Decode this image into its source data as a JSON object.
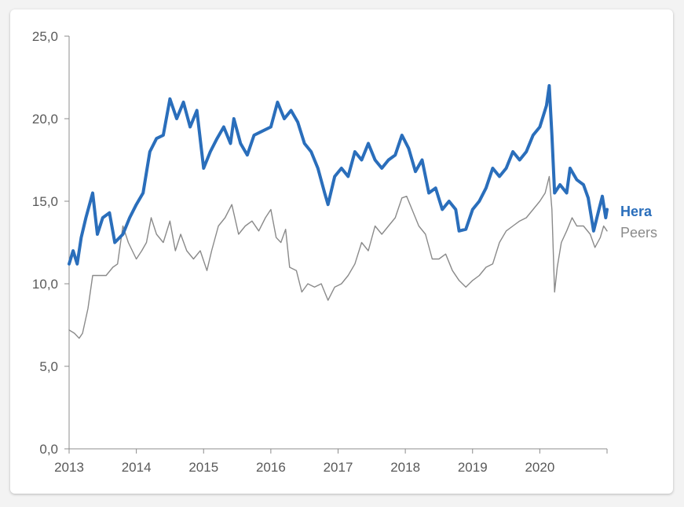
{
  "chart_data": {
    "type": "line",
    "title": "",
    "xlabel": "",
    "ylabel": "",
    "x_ticks": [
      "2013",
      "2014",
      "2015",
      "2016",
      "2017",
      "2018",
      "2019",
      "2020"
    ],
    "x_range": [
      2013.0,
      2021.0
    ],
    "y_ticks": [
      "0,0",
      "5,0",
      "10,0",
      "15,0",
      "20,0",
      "25,0"
    ],
    "y_range": [
      0,
      25
    ],
    "grid": false,
    "legend_placement": "right",
    "series": [
      {
        "name": "Hera",
        "color": "#2a6ebb",
        "bold": true,
        "points": [
          [
            2013.0,
            11.2
          ],
          [
            2013.06,
            12.0
          ],
          [
            2013.12,
            11.2
          ],
          [
            2013.18,
            12.8
          ],
          [
            2013.25,
            14.0
          ],
          [
            2013.35,
            15.5
          ],
          [
            2013.42,
            13.0
          ],
          [
            2013.5,
            14.0
          ],
          [
            2013.6,
            14.3
          ],
          [
            2013.68,
            12.5
          ],
          [
            2013.8,
            13.0
          ],
          [
            2013.9,
            14.0
          ],
          [
            2014.0,
            14.8
          ],
          [
            2014.1,
            15.5
          ],
          [
            2014.2,
            18.0
          ],
          [
            2014.3,
            18.8
          ],
          [
            2014.4,
            19.0
          ],
          [
            2014.5,
            21.2
          ],
          [
            2014.6,
            20.0
          ],
          [
            2014.7,
            21.0
          ],
          [
            2014.8,
            19.5
          ],
          [
            2014.9,
            20.5
          ],
          [
            2015.0,
            17.0
          ],
          [
            2015.1,
            18.0
          ],
          [
            2015.2,
            18.8
          ],
          [
            2015.3,
            19.5
          ],
          [
            2015.4,
            18.5
          ],
          [
            2015.45,
            20.0
          ],
          [
            2015.55,
            18.5
          ],
          [
            2015.65,
            17.8
          ],
          [
            2015.75,
            19.0
          ],
          [
            2015.85,
            19.2
          ],
          [
            2016.0,
            19.5
          ],
          [
            2016.1,
            21.0
          ],
          [
            2016.2,
            20.0
          ],
          [
            2016.3,
            20.5
          ],
          [
            2016.4,
            19.8
          ],
          [
            2016.5,
            18.5
          ],
          [
            2016.6,
            18.0
          ],
          [
            2016.7,
            17.0
          ],
          [
            2016.8,
            15.5
          ],
          [
            2016.85,
            14.8
          ],
          [
            2016.95,
            16.5
          ],
          [
            2017.05,
            17.0
          ],
          [
            2017.15,
            16.5
          ],
          [
            2017.25,
            18.0
          ],
          [
            2017.35,
            17.5
          ],
          [
            2017.45,
            18.5
          ],
          [
            2017.55,
            17.5
          ],
          [
            2017.65,
            17.0
          ],
          [
            2017.75,
            17.5
          ],
          [
            2017.85,
            17.8
          ],
          [
            2017.95,
            19.0
          ],
          [
            2018.05,
            18.2
          ],
          [
            2018.15,
            16.8
          ],
          [
            2018.25,
            17.5
          ],
          [
            2018.35,
            15.5
          ],
          [
            2018.45,
            15.8
          ],
          [
            2018.55,
            14.5
          ],
          [
            2018.65,
            15.0
          ],
          [
            2018.75,
            14.5
          ],
          [
            2018.8,
            13.2
          ],
          [
            2018.9,
            13.3
          ],
          [
            2019.0,
            14.5
          ],
          [
            2019.1,
            15.0
          ],
          [
            2019.2,
            15.8
          ],
          [
            2019.3,
            17.0
          ],
          [
            2019.4,
            16.5
          ],
          [
            2019.5,
            17.0
          ],
          [
            2019.6,
            18.0
          ],
          [
            2019.7,
            17.5
          ],
          [
            2019.8,
            18.0
          ],
          [
            2019.9,
            19.0
          ],
          [
            2020.0,
            19.5
          ],
          [
            2020.1,
            20.8
          ],
          [
            2020.14,
            22.0
          ],
          [
            2020.18,
            19.0
          ],
          [
            2020.22,
            15.5
          ],
          [
            2020.3,
            16.0
          ],
          [
            2020.4,
            15.5
          ],
          [
            2020.45,
            17.0
          ],
          [
            2020.55,
            16.3
          ],
          [
            2020.65,
            16.0
          ],
          [
            2020.72,
            15.2
          ],
          [
            2020.8,
            13.2
          ],
          [
            2020.88,
            14.5
          ],
          [
            2020.93,
            15.3
          ],
          [
            2020.98,
            14.0
          ],
          [
            2021.0,
            14.5
          ]
        ]
      },
      {
        "name": "Peers",
        "color": "#8a8a8a",
        "bold": false,
        "points": [
          [
            2013.0,
            7.2
          ],
          [
            2013.08,
            7.0
          ],
          [
            2013.15,
            6.7
          ],
          [
            2013.2,
            7.0
          ],
          [
            2013.28,
            8.5
          ],
          [
            2013.35,
            10.5
          ],
          [
            2013.45,
            10.5
          ],
          [
            2013.55,
            10.5
          ],
          [
            2013.65,
            11.0
          ],
          [
            2013.72,
            11.2
          ],
          [
            2013.8,
            13.5
          ],
          [
            2013.88,
            12.5
          ],
          [
            2014.0,
            11.5
          ],
          [
            2014.08,
            12.0
          ],
          [
            2014.15,
            12.5
          ],
          [
            2014.22,
            14.0
          ],
          [
            2014.3,
            13.0
          ],
          [
            2014.4,
            12.5
          ],
          [
            2014.5,
            13.8
          ],
          [
            2014.58,
            12.0
          ],
          [
            2014.66,
            13.0
          ],
          [
            2014.75,
            12.0
          ],
          [
            2014.85,
            11.5
          ],
          [
            2014.95,
            12.0
          ],
          [
            2015.05,
            10.8
          ],
          [
            2015.12,
            12.0
          ],
          [
            2015.22,
            13.5
          ],
          [
            2015.32,
            14.0
          ],
          [
            2015.42,
            14.8
          ],
          [
            2015.52,
            13.0
          ],
          [
            2015.62,
            13.5
          ],
          [
            2015.72,
            13.8
          ],
          [
            2015.82,
            13.2
          ],
          [
            2015.92,
            14.0
          ],
          [
            2016.0,
            14.5
          ],
          [
            2016.08,
            12.8
          ],
          [
            2016.15,
            12.5
          ],
          [
            2016.22,
            13.3
          ],
          [
            2016.28,
            11.0
          ],
          [
            2016.38,
            10.8
          ],
          [
            2016.46,
            9.5
          ],
          [
            2016.55,
            10.0
          ],
          [
            2016.65,
            9.8
          ],
          [
            2016.75,
            10.0
          ],
          [
            2016.85,
            9.0
          ],
          [
            2016.95,
            9.8
          ],
          [
            2017.05,
            10.0
          ],
          [
            2017.15,
            10.5
          ],
          [
            2017.25,
            11.2
          ],
          [
            2017.35,
            12.5
          ],
          [
            2017.45,
            12.0
          ],
          [
            2017.55,
            13.5
          ],
          [
            2017.65,
            13.0
          ],
          [
            2017.75,
            13.5
          ],
          [
            2017.85,
            14.0
          ],
          [
            2017.95,
            15.2
          ],
          [
            2018.02,
            15.3
          ],
          [
            2018.1,
            14.5
          ],
          [
            2018.2,
            13.5
          ],
          [
            2018.3,
            13.0
          ],
          [
            2018.4,
            11.5
          ],
          [
            2018.5,
            11.5
          ],
          [
            2018.6,
            11.8
          ],
          [
            2018.7,
            10.8
          ],
          [
            2018.8,
            10.2
          ],
          [
            2018.9,
            9.8
          ],
          [
            2019.0,
            10.2
          ],
          [
            2019.1,
            10.5
          ],
          [
            2019.2,
            11.0
          ],
          [
            2019.3,
            11.2
          ],
          [
            2019.4,
            12.5
          ],
          [
            2019.5,
            13.2
          ],
          [
            2019.6,
            13.5
          ],
          [
            2019.7,
            13.8
          ],
          [
            2019.8,
            14.0
          ],
          [
            2019.9,
            14.5
          ],
          [
            2020.0,
            15.0
          ],
          [
            2020.08,
            15.5
          ],
          [
            2020.14,
            16.5
          ],
          [
            2020.18,
            14.5
          ],
          [
            2020.22,
            9.5
          ],
          [
            2020.26,
            11.0
          ],
          [
            2020.32,
            12.5
          ],
          [
            2020.4,
            13.2
          ],
          [
            2020.48,
            14.0
          ],
          [
            2020.55,
            13.5
          ],
          [
            2020.65,
            13.5
          ],
          [
            2020.75,
            13.0
          ],
          [
            2020.82,
            12.2
          ],
          [
            2020.9,
            12.8
          ],
          [
            2020.95,
            13.5
          ],
          [
            2021.0,
            13.2
          ]
        ]
      }
    ]
  }
}
